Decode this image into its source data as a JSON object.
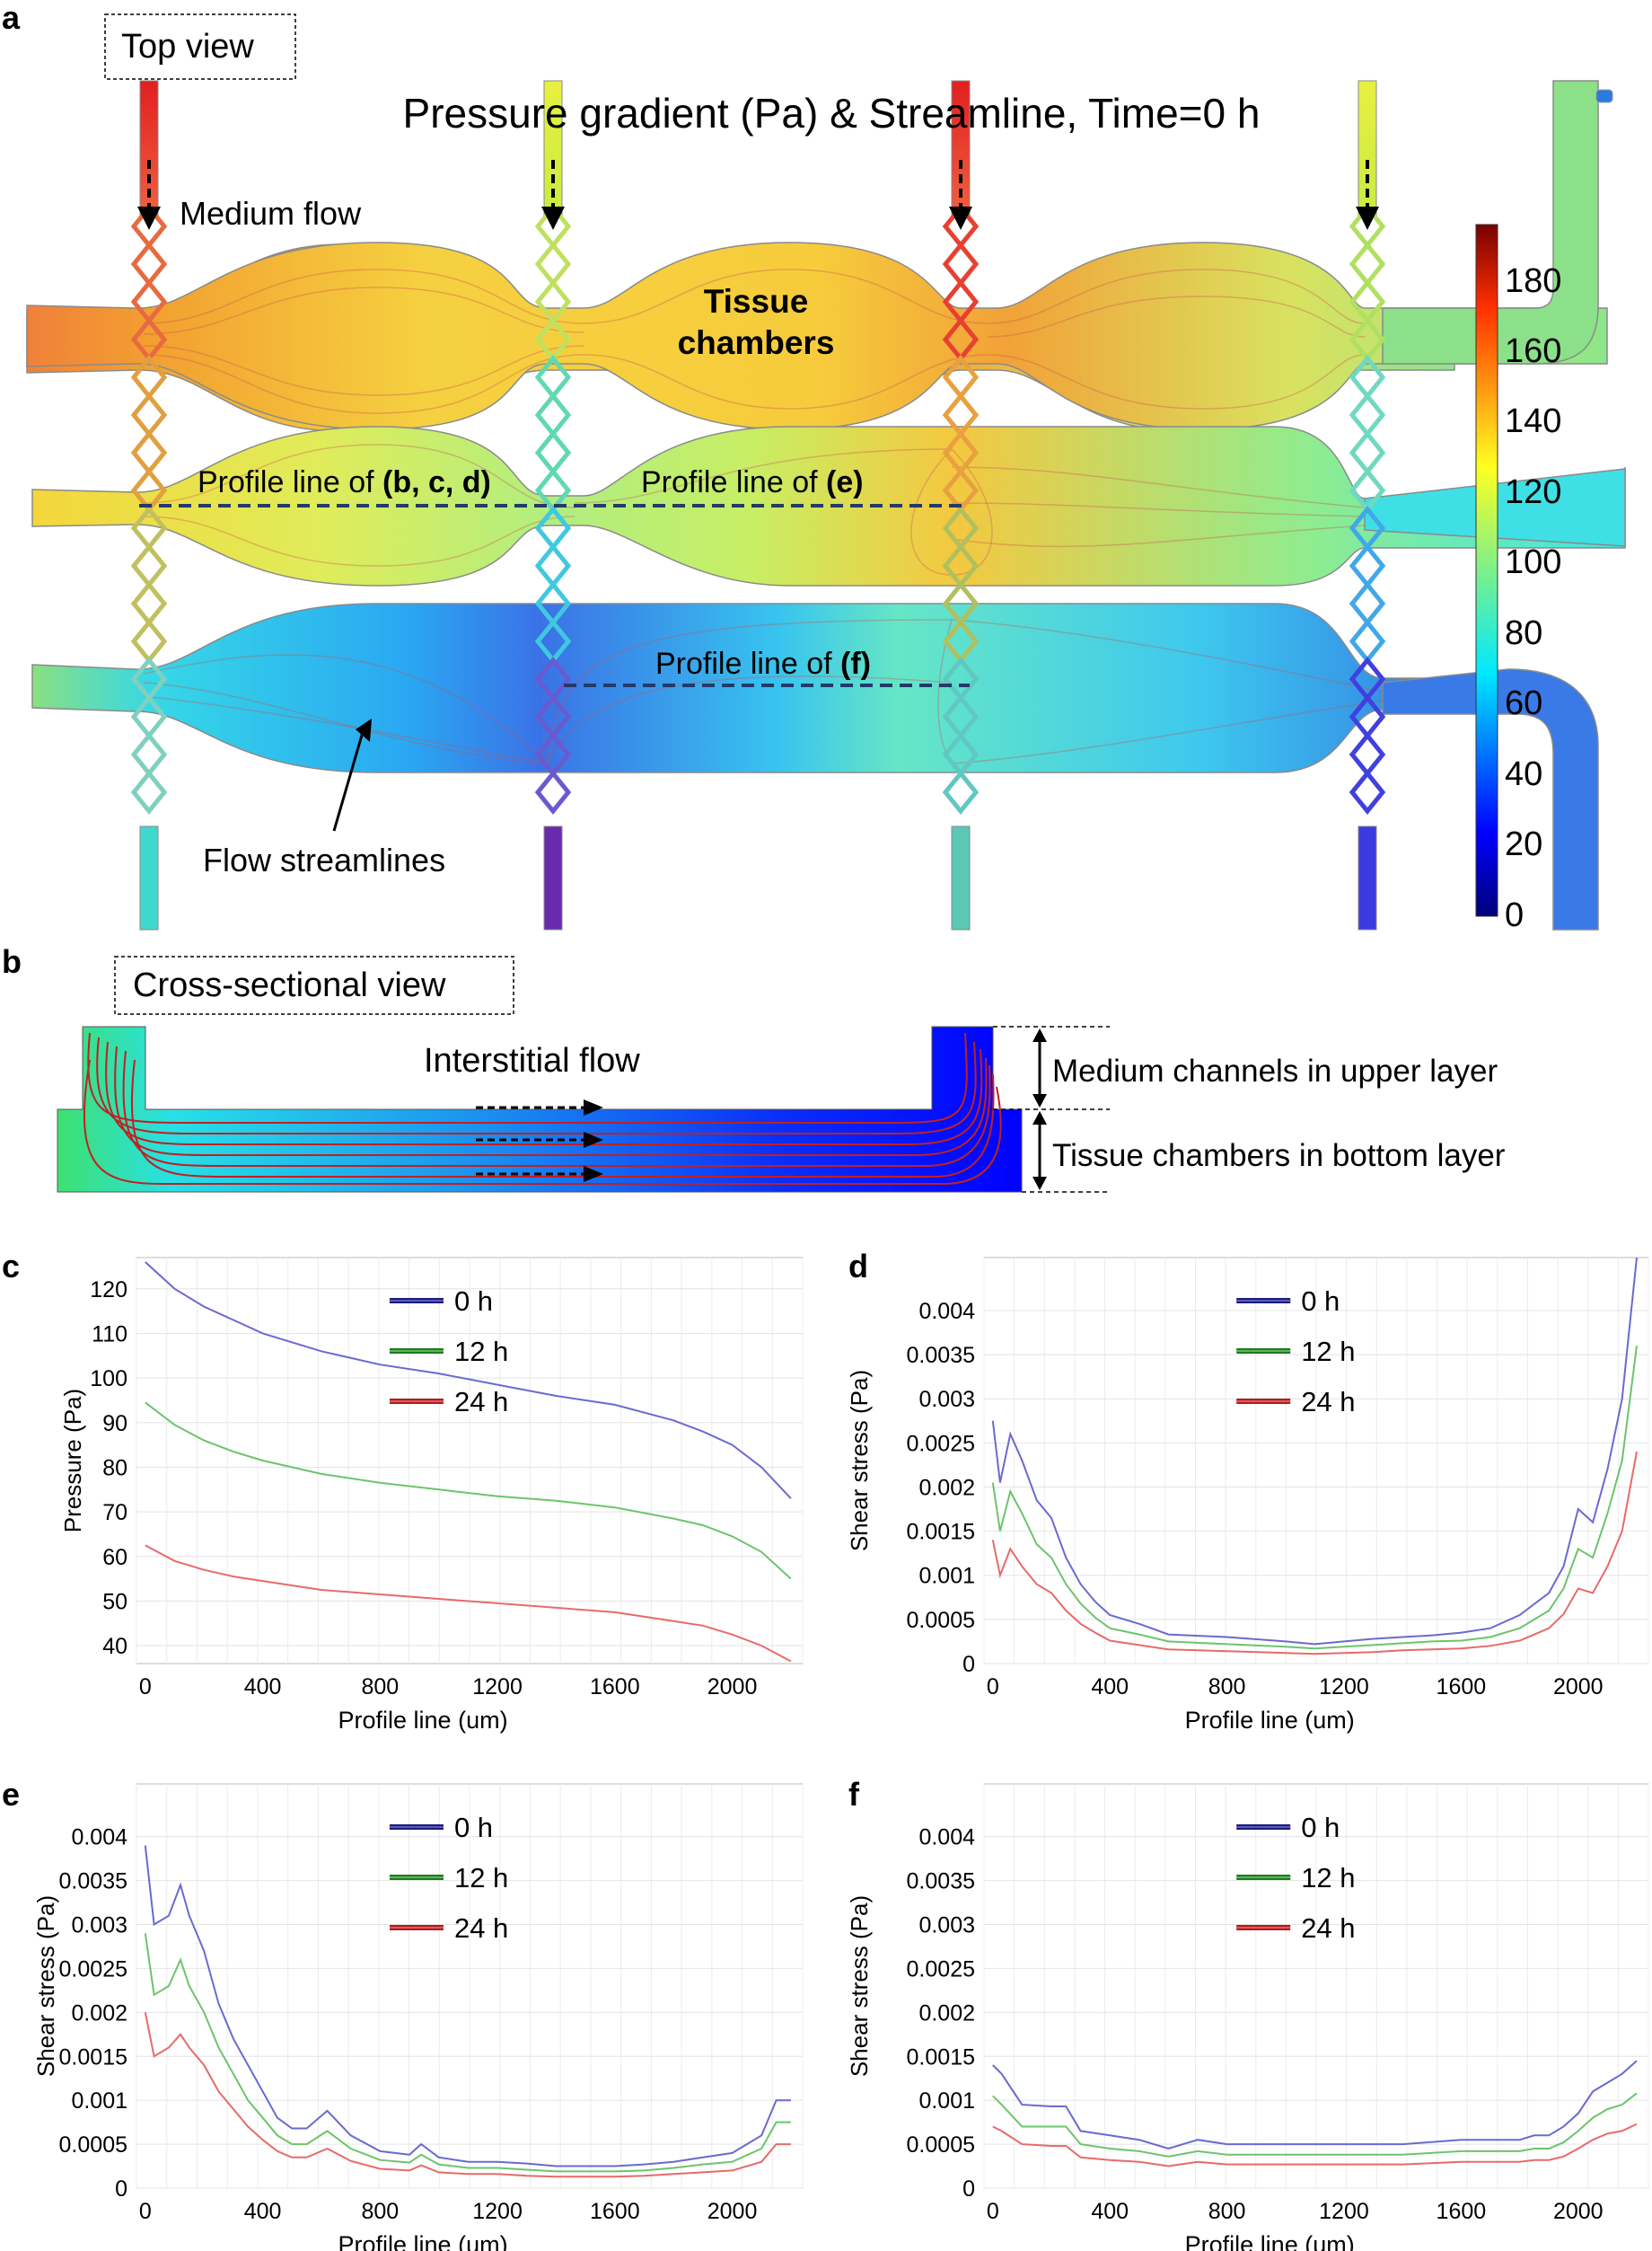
{
  "panel_a": {
    "letter": "a",
    "view_label": "Top view",
    "title": "Pressure gradient (Pa) & Streamline, Time=0 h",
    "medium_flow": "Medium flow",
    "tissue_chambers": [
      "Tissue",
      "chambers"
    ],
    "profile_bcd_prefix": "Profile line of ",
    "profile_bcd_bold": "(b, c, d)",
    "profile_e_prefix": "Profile line of ",
    "profile_e_bold": "(e)",
    "profile_f_prefix": "Profile line of ",
    "profile_f_bold": "(f)",
    "flow_streamlines": "Flow streamlines",
    "colorbar_ticks": [
      "180",
      "160",
      "140",
      "120",
      "100",
      "80",
      "60",
      "40",
      "20",
      "0"
    ]
  },
  "panel_b": {
    "letter": "b",
    "view_label": "Cross-sectional view",
    "interstitial": "Interstitial flow",
    "upper": "Medium channels in upper layer",
    "bottom": "Tissue chambers in bottom layer"
  },
  "colors": {
    "s0": "#6a6ad0",
    "s12": "#6cc46c",
    "s24": "#e86a6a",
    "legend0": "#1c1c7a",
    "legend12": "#1e7a1e",
    "legend24": "#b01c1c"
  },
  "chart_data": [
    {
      "letter": "c",
      "type": "line",
      "xlabel": "Profile line (um)",
      "ylabel": "Pressure (Pa)",
      "xlim": [
        -30,
        2240
      ],
      "ylim": [
        36,
        127
      ],
      "xticks": [
        0,
        400,
        800,
        1200,
        1600,
        2000
      ],
      "yticks": [
        40,
        50,
        60,
        70,
        80,
        90,
        100,
        110,
        120
      ],
      "ytick_labels": [
        "40",
        "50",
        "60",
        "70",
        "80",
        "90",
        "100",
        "110",
        "120"
      ],
      "grid": true,
      "legend": "top-right",
      "series": [
        {
          "name": "0 h",
          "x": [
            0,
            100,
            200,
            300,
            400,
            600,
            800,
            1000,
            1200,
            1400,
            1600,
            1800,
            1900,
            2000,
            2100,
            2200
          ],
          "y": [
            126,
            120,
            116,
            113,
            110,
            106,
            103,
            101,
            98.5,
            96,
            94,
            90.5,
            88,
            85,
            80,
            73
          ]
        },
        {
          "name": "12 h",
          "x": [
            0,
            100,
            200,
            300,
            400,
            600,
            800,
            1000,
            1200,
            1400,
            1600,
            1800,
            1900,
            2000,
            2100,
            2200
          ],
          "y": [
            94.5,
            89.5,
            86,
            83.5,
            81.5,
            78.5,
            76.5,
            75,
            73.5,
            72.5,
            71,
            68.5,
            67,
            64.5,
            61,
            55
          ]
        },
        {
          "name": "24 h",
          "x": [
            0,
            100,
            200,
            300,
            400,
            600,
            800,
            1000,
            1200,
            1400,
            1600,
            1800,
            1900,
            2000,
            2100,
            2200
          ],
          "y": [
            62.5,
            59,
            57,
            55.5,
            54.5,
            52.5,
            51.5,
            50.5,
            49.5,
            48.5,
            47.5,
            45.5,
            44.5,
            42.5,
            40,
            36.5
          ]
        }
      ]
    },
    {
      "letter": "d",
      "type": "line",
      "xlabel": "Profile line (um)",
      "ylabel": "Shear stress (Pa)",
      "xlim": [
        -30,
        2240
      ],
      "ylim": [
        0,
        0.0046
      ],
      "xticks": [
        0,
        400,
        800,
        1200,
        1600,
        2000
      ],
      "yticks": [
        0,
        0.0005,
        0.001,
        0.0015,
        0.002,
        0.0025,
        0.003,
        0.0035,
        0.004
      ],
      "ytick_labels": [
        "0",
        "0.0005",
        "0.001",
        "0.0015",
        "0.002",
        "0.0025",
        "0.003",
        "0.0035",
        "0.004"
      ],
      "grid": true,
      "legend": "top-right",
      "series": [
        {
          "name": "0 h",
          "x": [
            0,
            25,
            60,
            100,
            150,
            200,
            250,
            300,
            350,
            400,
            500,
            600,
            800,
            1000,
            1100,
            1200,
            1300,
            1400,
            1500,
            1600,
            1700,
            1800,
            1900,
            1950,
            2000,
            2050,
            2100,
            2150,
            2200
          ],
          "y": [
            0.00275,
            0.00205,
            0.0026,
            0.0023,
            0.00185,
            0.00165,
            0.0012,
            0.0009,
            0.0007,
            0.00055,
            0.00045,
            0.00033,
            0.0003,
            0.00025,
            0.00022,
            0.00025,
            0.00028,
            0.0003,
            0.00032,
            0.00035,
            0.0004,
            0.00055,
            0.0008,
            0.0011,
            0.00175,
            0.0016,
            0.0022,
            0.003,
            0.0047
          ]
        },
        {
          "name": "12 h",
          "x": [
            0,
            25,
            60,
            100,
            150,
            200,
            250,
            300,
            350,
            400,
            500,
            600,
            800,
            1000,
            1100,
            1200,
            1300,
            1400,
            1500,
            1600,
            1700,
            1800,
            1900,
            1950,
            2000,
            2050,
            2100,
            2150,
            2200
          ],
          "y": [
            0.00205,
            0.0015,
            0.00195,
            0.0017,
            0.00135,
            0.0012,
            0.0009,
            0.00068,
            0.00052,
            0.0004,
            0.00033,
            0.00025,
            0.00022,
            0.00019,
            0.00017,
            0.00019,
            0.00021,
            0.00023,
            0.00025,
            0.00026,
            0.0003,
            0.0004,
            0.0006,
            0.00085,
            0.0013,
            0.0012,
            0.0017,
            0.0023,
            0.0036
          ]
        },
        {
          "name": "24 h",
          "x": [
            0,
            25,
            60,
            100,
            150,
            200,
            250,
            300,
            350,
            400,
            500,
            600,
            800,
            1000,
            1100,
            1200,
            1300,
            1400,
            1500,
            1600,
            1700,
            1800,
            1900,
            1950,
            2000,
            2050,
            2100,
            2150,
            2200
          ],
          "y": [
            0.0014,
            0.001,
            0.0013,
            0.0011,
            0.0009,
            0.0008,
            0.0006,
            0.00045,
            0.00035,
            0.00026,
            0.00021,
            0.00016,
            0.00014,
            0.00012,
            0.00011,
            0.00012,
            0.00013,
            0.00015,
            0.00016,
            0.00017,
            0.0002,
            0.00026,
            0.0004,
            0.00056,
            0.00085,
            0.0008,
            0.0011,
            0.0015,
            0.0024
          ]
        }
      ]
    },
    {
      "letter": "e",
      "type": "line",
      "xlabel": "Profile line (um)",
      "ylabel": "Shear stress (Pa)",
      "xlim": [
        -30,
        2240
      ],
      "ylim": [
        0,
        0.0046
      ],
      "xticks": [
        0,
        400,
        800,
        1200,
        1600,
        2000
      ],
      "yticks": [
        0,
        0.0005,
        0.001,
        0.0015,
        0.002,
        0.0025,
        0.003,
        0.0035,
        0.004
      ],
      "ytick_labels": [
        "0",
        "0.0005",
        "0.001",
        "0.0015",
        "0.002",
        "0.0025",
        "0.003",
        "0.0035",
        "0.004"
      ],
      "grid": true,
      "legend": "top-right",
      "series": [
        {
          "name": "0 h",
          "x": [
            0,
            30,
            80,
            120,
            150,
            200,
            250,
            300,
            350,
            400,
            450,
            500,
            550,
            620,
            700,
            800,
            900,
            940,
            1000,
            1100,
            1200,
            1300,
            1400,
            1500,
            1600,
            1700,
            1800,
            1900,
            2000,
            2100,
            2150,
            2200
          ],
          "y": [
            0.0039,
            0.003,
            0.0031,
            0.00345,
            0.0031,
            0.0027,
            0.0021,
            0.0017,
            0.0014,
            0.0011,
            0.0008,
            0.00068,
            0.00068,
            0.00088,
            0.0006,
            0.00042,
            0.00038,
            0.0005,
            0.00035,
            0.0003,
            0.0003,
            0.00028,
            0.00025,
            0.00025,
            0.00025,
            0.00027,
            0.0003,
            0.00035,
            0.0004,
            0.0006,
            0.001,
            0.001
          ]
        },
        {
          "name": "12 h",
          "x": [
            0,
            30,
            80,
            120,
            150,
            200,
            250,
            300,
            350,
            400,
            450,
            500,
            550,
            620,
            700,
            800,
            900,
            940,
            1000,
            1100,
            1200,
            1300,
            1400,
            1500,
            1600,
            1700,
            1800,
            1900,
            2000,
            2100,
            2150,
            2200
          ],
          "y": [
            0.0029,
            0.0022,
            0.0023,
            0.0026,
            0.0023,
            0.002,
            0.0016,
            0.0013,
            0.001,
            0.0008,
            0.0006,
            0.0005,
            0.0005,
            0.00065,
            0.00045,
            0.00032,
            0.00029,
            0.00038,
            0.00027,
            0.00023,
            0.00023,
            0.00021,
            0.00019,
            0.00019,
            0.00019,
            0.0002,
            0.00023,
            0.00027,
            0.0003,
            0.00045,
            0.00075,
            0.00075
          ]
        },
        {
          "name": "24 h",
          "x": [
            0,
            30,
            80,
            120,
            150,
            200,
            250,
            300,
            350,
            400,
            450,
            500,
            550,
            620,
            700,
            800,
            900,
            940,
            1000,
            1100,
            1200,
            1300,
            1400,
            1500,
            1600,
            1700,
            1800,
            1900,
            2000,
            2100,
            2150,
            2200
          ],
          "y": [
            0.002,
            0.0015,
            0.0016,
            0.00175,
            0.0016,
            0.0014,
            0.0011,
            0.0009,
            0.0007,
            0.00055,
            0.00042,
            0.00035,
            0.00035,
            0.00045,
            0.00031,
            0.00022,
            0.0002,
            0.00026,
            0.00018,
            0.00016,
            0.00016,
            0.00014,
            0.00013,
            0.00013,
            0.00013,
            0.00014,
            0.00016,
            0.00018,
            0.0002,
            0.0003,
            0.0005,
            0.0005
          ]
        }
      ]
    },
    {
      "letter": "f",
      "type": "line",
      "xlabel": "Profile line (um)",
      "ylabel": "Shear stress (Pa)",
      "xlim": [
        -30,
        2240
      ],
      "ylim": [
        0,
        0.0046
      ],
      "xticks": [
        0,
        400,
        800,
        1200,
        1600,
        2000
      ],
      "yticks": [
        0,
        0.0005,
        0.001,
        0.0015,
        0.002,
        0.0025,
        0.003,
        0.0035,
        0.004
      ],
      "ytick_labels": [
        "0",
        "0.0005",
        "0.001",
        "0.0015",
        "0.002",
        "0.0025",
        "0.003",
        "0.0035",
        "0.004"
      ],
      "grid": true,
      "legend": "top-right",
      "series": [
        {
          "name": "0 h",
          "x": [
            0,
            30,
            100,
            200,
            250,
            300,
            400,
            500,
            600,
            700,
            800,
            1000,
            1200,
            1400,
            1600,
            1700,
            1800,
            1850,
            1900,
            1950,
            2000,
            2050,
            2100,
            2150,
            2200
          ],
          "y": [
            0.0014,
            0.0013,
            0.00095,
            0.00093,
            0.00093,
            0.00065,
            0.0006,
            0.00055,
            0.00045,
            0.00055,
            0.0005,
            0.0005,
            0.0005,
            0.0005,
            0.00055,
            0.00055,
            0.00055,
            0.0006,
            0.0006,
            0.0007,
            0.00085,
            0.0011,
            0.0012,
            0.0013,
            0.00145
          ]
        },
        {
          "name": "12 h",
          "x": [
            0,
            30,
            100,
            200,
            250,
            300,
            400,
            500,
            600,
            700,
            800,
            1000,
            1200,
            1400,
            1600,
            1700,
            1800,
            1850,
            1900,
            1950,
            2000,
            2050,
            2100,
            2150,
            2200
          ],
          "y": [
            0.00105,
            0.00095,
            0.0007,
            0.0007,
            0.0007,
            0.0005,
            0.00045,
            0.00042,
            0.00036,
            0.00042,
            0.00038,
            0.00038,
            0.00038,
            0.00038,
            0.00042,
            0.00042,
            0.00042,
            0.00045,
            0.00045,
            0.00052,
            0.00065,
            0.0008,
            0.0009,
            0.00095,
            0.00108
          ]
        },
        {
          "name": "24 h",
          "x": [
            0,
            30,
            100,
            200,
            250,
            300,
            400,
            500,
            600,
            700,
            800,
            1000,
            1200,
            1400,
            1600,
            1700,
            1800,
            1850,
            1900,
            1950,
            2000,
            2050,
            2100,
            2150,
            2200
          ],
          "y": [
            0.0007,
            0.00065,
            0.0005,
            0.00048,
            0.00048,
            0.00035,
            0.00032,
            0.0003,
            0.00025,
            0.0003,
            0.00027,
            0.00027,
            0.00027,
            0.00027,
            0.0003,
            0.0003,
            0.0003,
            0.00032,
            0.00032,
            0.00036,
            0.00045,
            0.00055,
            0.00062,
            0.00065,
            0.00073
          ]
        }
      ]
    }
  ]
}
